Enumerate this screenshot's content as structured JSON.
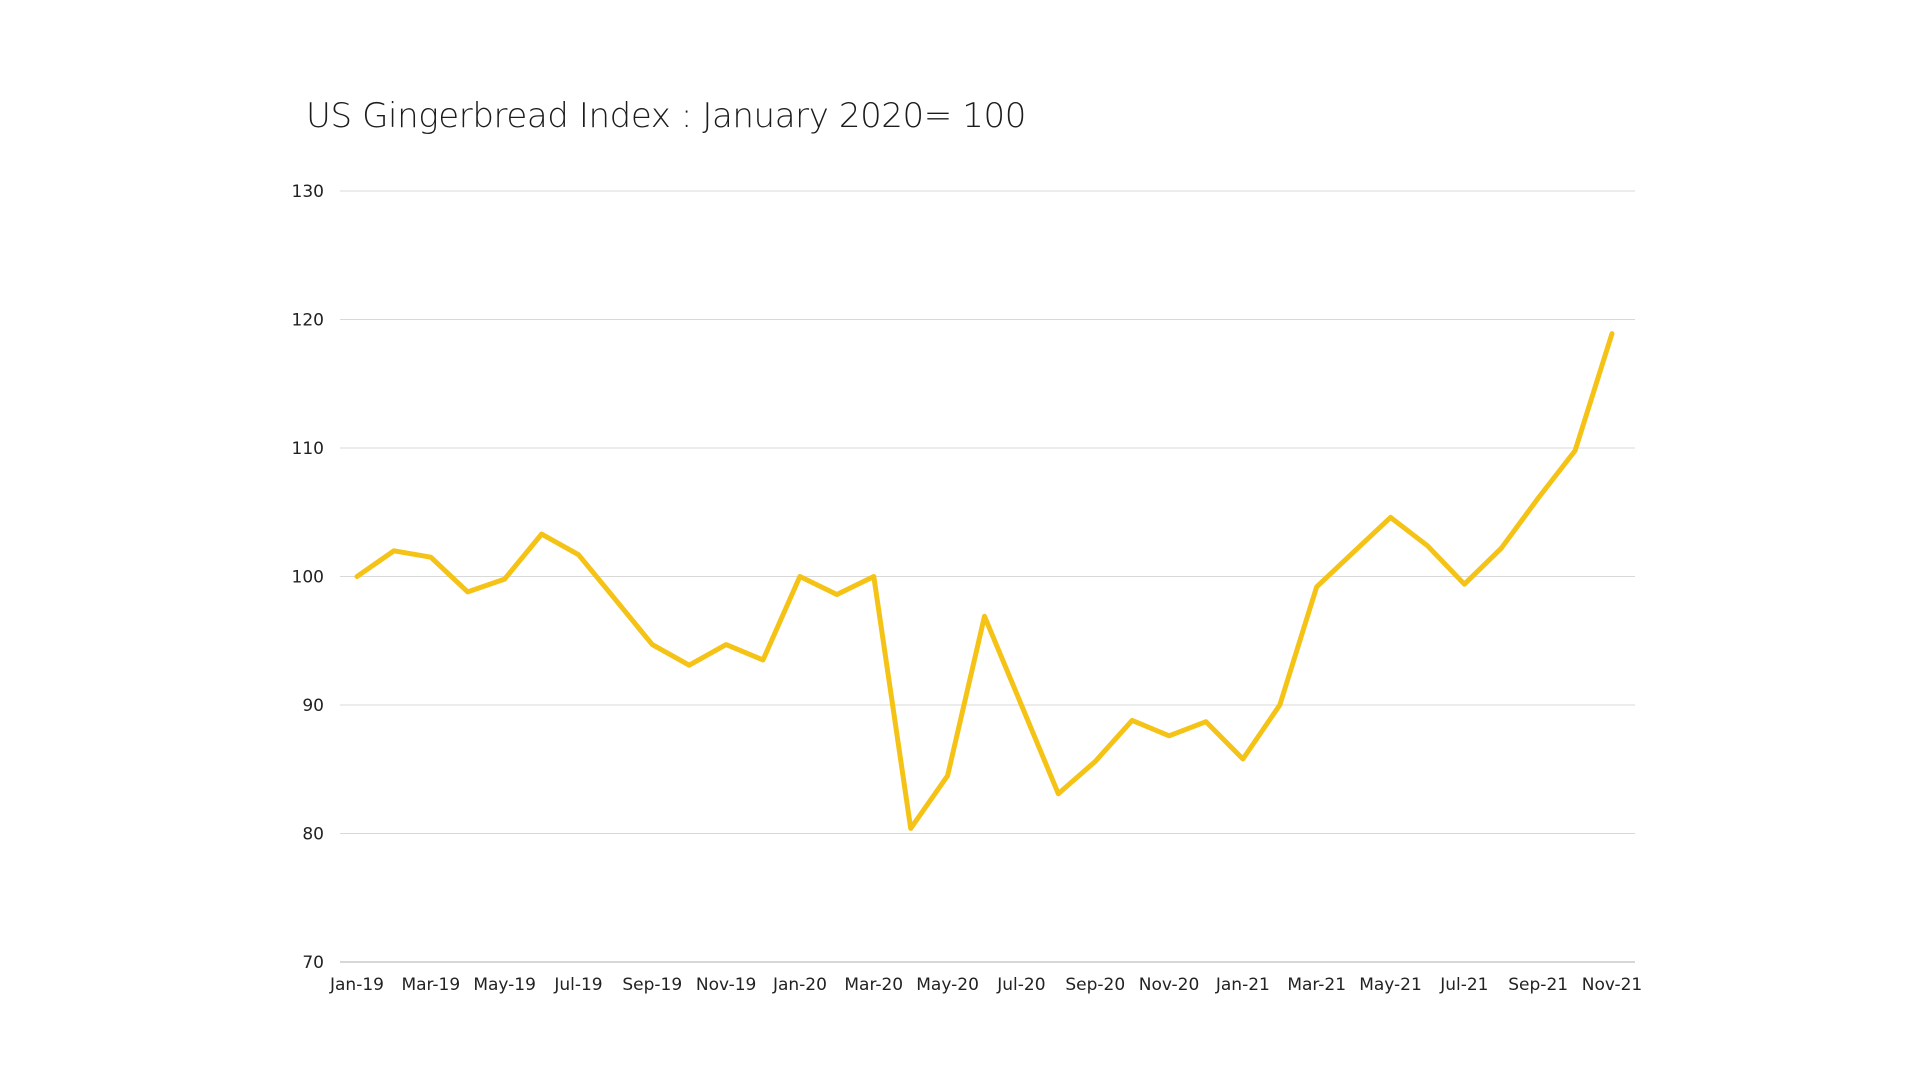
{
  "colors": {
    "series": "#F5C316",
    "grid": "#d9d9d9",
    "text": "#222222"
  },
  "chart_data": {
    "type": "line",
    "title": "US Gingerbread Index : January 2020= 100",
    "xlabel": "",
    "ylabel": "",
    "ylim": [
      70,
      130
    ],
    "yticks": [
      70,
      80,
      90,
      100,
      110,
      120,
      130
    ],
    "grid": true,
    "legend": "none",
    "x": [
      "Jan-19",
      "Feb-19",
      "Mar-19",
      "Apr-19",
      "May-19",
      "Jun-19",
      "Jul-19",
      "Aug-19",
      "Sep-19",
      "Oct-19",
      "Nov-19",
      "Dec-19",
      "Jan-20",
      "Feb-20",
      "Mar-20",
      "Apr-20",
      "May-20",
      "Jun-20",
      "Jul-20",
      "Aug-20",
      "Sep-20",
      "Oct-20",
      "Nov-20",
      "Dec-20",
      "Jan-21",
      "Feb-21",
      "Mar-21",
      "Apr-21",
      "May-21",
      "Jun-21",
      "Jul-21",
      "Aug-21",
      "Sep-21",
      "Oct-21",
      "Nov-21"
    ],
    "xtick_labels": [
      "Jan-19",
      "Mar-19",
      "May-19",
      "Jul-19",
      "Sep-19",
      "Nov-19",
      "Jan-20",
      "Mar-20",
      "May-20",
      "Jul-20",
      "Sep-20",
      "Nov-20",
      "Jan-21",
      "Mar-21",
      "May-21",
      "Jul-21",
      "Sep-21",
      "Nov-21"
    ],
    "series": [
      {
        "values": [
          100.0,
          102.0,
          101.5,
          98.8,
          99.8,
          103.3,
          101.7,
          98.2,
          94.7,
          93.1,
          94.7,
          93.5,
          100.0,
          98.6,
          100.0,
          80.4,
          84.5,
          96.9,
          90.0,
          83.1,
          85.6,
          88.8,
          87.6,
          88.7,
          85.8,
          90.0,
          99.2,
          101.9,
          104.6,
          102.4,
          99.4,
          102.2,
          106.1,
          109.8,
          118.9
        ]
      }
    ]
  }
}
